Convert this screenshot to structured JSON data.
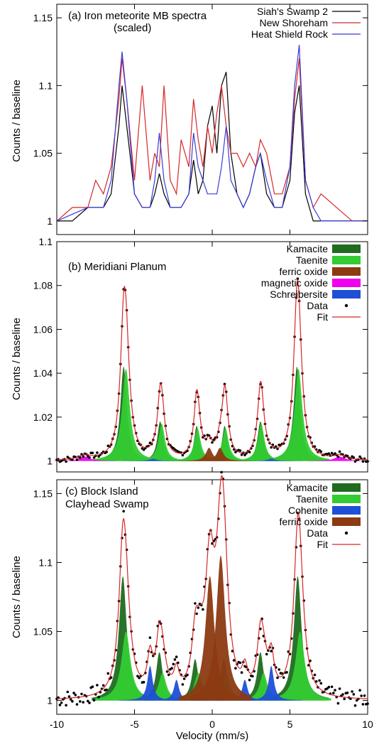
{
  "chart_data": [
    {
      "type": "line",
      "panel": "a",
      "title": "(a) Iron meteorite MB spectra",
      "subtitle": "(scaled)",
      "ylabel": "Counts / baseline",
      "xlim": [
        -10,
        10
      ],
      "ylim": [
        0.99,
        1.16
      ],
      "yticks": [
        "1",
        "1.05",
        "1.1",
        "1.15"
      ],
      "ytick_values": [
        1.0,
        1.05,
        1.1,
        1.15
      ],
      "legend_position": "top-right",
      "legend": [
        "Siah's Swamp 2",
        "New Shoreham",
        "Heat Shield Rock"
      ],
      "series": [
        {
          "name": "Siah's Swamp 2",
          "color": "#000000",
          "x": [
            -10,
            -9,
            -8,
            -7,
            -6.5,
            -6,
            -5.8,
            -5.5,
            -5,
            -4.5,
            -4,
            -3.7,
            -3.4,
            -3.1,
            -2.7,
            -2.3,
            -2,
            -1.5,
            -1.2,
            -0.9,
            -0.6,
            -0.3,
            0,
            0.3,
            0.6,
            0.9,
            1.2,
            1.6,
            2,
            2.4,
            2.8,
            3.1,
            3.5,
            4,
            4.5,
            5,
            5.3,
            5.6,
            6,
            6.5,
            7,
            8,
            9,
            10
          ],
          "y": [
            1.0,
            1.0,
            1.01,
            1.01,
            1.02,
            1.07,
            1.1,
            1.07,
            1.02,
            1.01,
            1.01,
            1.02,
            1.035,
            1.02,
            1.01,
            1.01,
            1.01,
            1.02,
            1.045,
            1.02,
            1.03,
            1.07,
            1.085,
            1.05,
            1.1,
            1.11,
            1.05,
            1.02,
            1.01,
            1.02,
            1.04,
            1.05,
            1.02,
            1.01,
            1.01,
            1.03,
            1.08,
            1.1,
            1.02,
            1.0,
            1.0,
            1.0,
            1.0,
            1.0
          ]
        },
        {
          "name": "New Shoreham",
          "color": "#d62728",
          "x": [
            -10,
            -9,
            -8,
            -7.5,
            -7,
            -6.5,
            -6,
            -5.8,
            -5.5,
            -5,
            -4.5,
            -4,
            -3.7,
            -3.4,
            -3.1,
            -2.7,
            -2.3,
            -2,
            -1.5,
            -1.2,
            -0.9,
            -0.6,
            -0.3,
            0,
            0.3,
            0.6,
            0.9,
            1.2,
            1.6,
            2,
            2.4,
            2.8,
            3.1,
            3.5,
            4,
            4.5,
            5,
            5.3,
            5.6,
            6,
            6.5,
            7,
            8,
            9,
            10
          ],
          "y": [
            1.0,
            1.01,
            1.01,
            1.03,
            1.02,
            1.04,
            1.09,
            1.12,
            1.09,
            1.03,
            1.1,
            1.03,
            1.05,
            1.04,
            1.1,
            1.03,
            1.02,
            1.06,
            1.04,
            1.09,
            1.06,
            1.04,
            1.07,
            1.05,
            1.08,
            1.1,
            1.07,
            1.05,
            1.05,
            1.04,
            1.05,
            1.04,
            1.06,
            1.05,
            1.02,
            1.02,
            1.04,
            1.09,
            1.12,
            1.03,
            1.01,
            1.02,
            1.01,
            1.0,
            1.0
          ]
        },
        {
          "name": "Heat Shield Rock",
          "color": "#3b3bd6",
          "x": [
            -10,
            -9,
            -8,
            -7,
            -6.5,
            -6,
            -5.8,
            -5.5,
            -5,
            -4.5,
            -4,
            -3.7,
            -3.4,
            -3.1,
            -2.7,
            -2.3,
            -2,
            -1.5,
            -1.2,
            -0.9,
            -0.6,
            -0.3,
            0,
            0.3,
            0.6,
            0.9,
            1.2,
            1.6,
            2,
            2.4,
            2.8,
            3.1,
            3.5,
            4,
            4.5,
            5,
            5.3,
            5.6,
            6,
            6.5,
            7,
            8,
            9,
            10
          ],
          "y": [
            1.0,
            1.005,
            1.01,
            1.01,
            1.03,
            1.1,
            1.125,
            1.09,
            1.02,
            1.01,
            1.01,
            1.03,
            1.065,
            1.03,
            1.01,
            1.01,
            1.01,
            1.02,
            1.065,
            1.04,
            1.03,
            1.02,
            1.02,
            1.02,
            1.04,
            1.07,
            1.03,
            1.02,
            1.01,
            1.02,
            1.04,
            1.05,
            1.03,
            1.01,
            1.01,
            1.04,
            1.1,
            1.13,
            1.03,
            1.01,
            1.0,
            1.0,
            1.0,
            1.0
          ]
        }
      ]
    },
    {
      "type": "area",
      "panel": "b",
      "title": "(b) Meridiani Planum",
      "ylabel": "Counts / baseline",
      "xlim": [
        -10,
        10
      ],
      "ylim": [
        0.995,
        1.1
      ],
      "yticks": [
        "1",
        "1.02",
        "1.04",
        "1.06",
        "1.08",
        "1.1"
      ],
      "ytick_values": [
        1.0,
        1.02,
        1.04,
        1.06,
        1.08,
        1.1
      ],
      "legend_position": "top-right",
      "legend": [
        "Kamacite",
        "Taenite",
        "ferric oxide",
        "magnetic oxide",
        "Schreibersite",
        "Data",
        "Fit"
      ],
      "components": [
        {
          "name": "Kamacite",
          "color": "#1f6b1f",
          "peaks": [
            [
              -5.7,
              0.043,
              0.25
            ],
            [
              -3.35,
              0.018,
              0.22
            ],
            [
              -1.0,
              0.016,
              0.2
            ],
            [
              0.8,
              0.016,
              0.2
            ],
            [
              3.1,
              0.018,
              0.22
            ],
            [
              5.45,
              0.043,
              0.25
            ]
          ]
        },
        {
          "name": "Taenite",
          "color": "#33cc33",
          "peaks": [
            [
              -5.55,
              0.042,
              0.3
            ],
            [
              -3.25,
              0.017,
              0.25
            ],
            [
              -0.95,
              0.015,
              0.25
            ],
            [
              0.85,
              0.015,
              0.25
            ],
            [
              3.15,
              0.017,
              0.25
            ],
            [
              5.55,
              0.042,
              0.3
            ]
          ]
        },
        {
          "name": "ferric oxide",
          "color": "#8b3a12",
          "peaks": [
            [
              -0.2,
              0.006,
              0.25
            ],
            [
              0.5,
              0.006,
              0.25
            ]
          ]
        },
        {
          "name": "magnetic oxide",
          "color": "#ee00ee",
          "peaks": [
            [
              -8.2,
              0.002,
              0.4
            ],
            [
              8.2,
              0.002,
              0.4
            ]
          ]
        },
        {
          "name": "Schreibersite",
          "color": "#1f4fd6",
          "peaks": [
            [
              -3.8,
              0.001,
              0.3
            ],
            [
              3.8,
              0.001,
              0.3
            ]
          ]
        }
      ],
      "fit_color": "#d62728",
      "data_color": "#000000"
    },
    {
      "type": "area",
      "panel": "c",
      "title": "(c) Block Island",
      "subtitle": "Clayhead Swamp",
      "ylabel": "Counts / baseline",
      "xlabel": "Velocity (mm/s)",
      "xlim": [
        -10,
        10
      ],
      "ylim": [
        0.99,
        1.16
      ],
      "yticks": [
        "1",
        "1.05",
        "1.1",
        "1.15"
      ],
      "ytick_values": [
        1.0,
        1.05,
        1.1,
        1.15
      ],
      "xticks": [
        "-10",
        "-5",
        "0",
        "5",
        "10"
      ],
      "xtick_values": [
        -10,
        -5,
        0,
        5,
        10
      ],
      "legend_position": "top-right",
      "legend": [
        "Kamacite",
        "Taenite",
        "Cohenite",
        "ferric oxide",
        "Data",
        "Fit"
      ],
      "components": [
        {
          "name": "Kamacite",
          "color": "#1f6b1f",
          "peaks": [
            [
              -5.75,
              0.09,
              0.3
            ],
            [
              -3.4,
              0.035,
              0.25
            ],
            [
              -1.1,
              0.03,
              0.25
            ],
            [
              0.75,
              0.03,
              0.25
            ],
            [
              3.1,
              0.035,
              0.25
            ],
            [
              5.5,
              0.09,
              0.3
            ]
          ]
        },
        {
          "name": "Taenite",
          "color": "#33cc33",
          "peaks": [
            [
              -5.55,
              0.05,
              0.35
            ],
            [
              -3.2,
              0.02,
              0.3
            ],
            [
              -0.9,
              0.02,
              0.3
            ],
            [
              0.9,
              0.02,
              0.3
            ],
            [
              3.3,
              0.02,
              0.3
            ],
            [
              5.65,
              0.05,
              0.35
            ]
          ]
        },
        {
          "name": "Cohenite",
          "color": "#1f4fd6",
          "peaks": [
            [
              -4.0,
              0.025,
              0.2
            ],
            [
              -2.3,
              0.015,
              0.2
            ],
            [
              -0.7,
              0.01,
              0.2
            ],
            [
              0.7,
              0.01,
              0.2
            ],
            [
              2.1,
              0.015,
              0.2
            ],
            [
              3.8,
              0.025,
              0.2
            ]
          ]
        },
        {
          "name": "ferric oxide",
          "color": "#8b3a12",
          "peaks": [
            [
              -0.15,
              0.09,
              0.35
            ],
            [
              0.55,
              0.105,
              0.35
            ]
          ]
        }
      ],
      "fit_color": "#d62728",
      "data_color": "#000000"
    }
  ]
}
